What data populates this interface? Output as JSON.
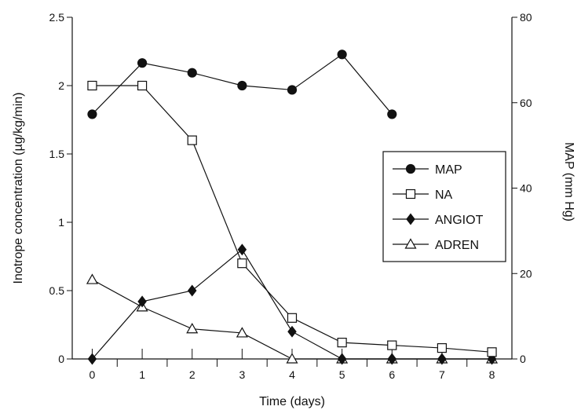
{
  "chart_data": {
    "type": "line",
    "title": "",
    "xlabel": "Time (days)",
    "ylabel_left": "Inotrope concentration (µg/kg/min)",
    "ylabel_right": "MAP (mm Hg)",
    "xlim": [
      -0.4,
      8.4
    ],
    "ylim_left": [
      0,
      2.5
    ],
    "ylim_right": [
      0,
      80
    ],
    "x_ticks": [
      0,
      1,
      2,
      3,
      4,
      5,
      6,
      7,
      8
    ],
    "y_left_ticks": [
      "0",
      "0.5",
      "1",
      "1.5",
      "2",
      "2.5"
    ],
    "y_right_ticks": [
      "0",
      "20",
      "40",
      "60",
      "80"
    ],
    "grid": false,
    "legend_position": "right",
    "series": [
      {
        "name": "MAP",
        "axis": "right",
        "marker": "filled-circle",
        "x": [
          0,
          1,
          2,
          3,
          4,
          5,
          6
        ],
        "values": [
          57.3,
          69.3,
          67,
          64,
          63,
          71.3,
          57.3
        ]
      },
      {
        "name": "NA",
        "axis": "left",
        "marker": "open-square",
        "x": [
          0,
          1,
          2,
          3,
          4,
          5,
          6,
          7,
          8
        ],
        "values": [
          2.0,
          2.0,
          1.6,
          0.7,
          0.3,
          0.12,
          0.1,
          0.08,
          0.05
        ]
      },
      {
        "name": "ANGIOT",
        "axis": "left",
        "marker": "filled-diamond",
        "x": [
          0,
          1,
          2,
          3,
          4,
          5,
          6,
          7,
          8
        ],
        "values": [
          0,
          0.42,
          0.5,
          0.8,
          0.2,
          0,
          0,
          0,
          0
        ]
      },
      {
        "name": "ADREN",
        "axis": "left",
        "marker": "open-triangle",
        "x": [
          0,
          1,
          2,
          3,
          4,
          5,
          6,
          7,
          8
        ],
        "values": [
          0.58,
          0.38,
          0.22,
          0.19,
          0,
          0,
          0,
          0,
          0
        ]
      }
    ]
  }
}
